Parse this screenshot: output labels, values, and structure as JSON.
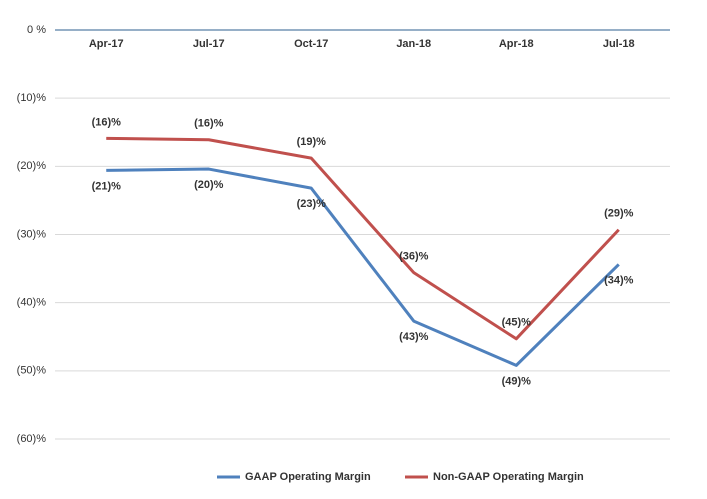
{
  "chart_data": {
    "type": "line",
    "categories": [
      "Apr-17",
      "Jul-17",
      "Oct-17",
      "Jan-18",
      "Apr-18",
      "Jul-18"
    ],
    "series": [
      {
        "name": "GAAP Operating Margin",
        "color": "#4f81bd",
        "values": [
          -20.6,
          -20.4,
          -23.2,
          -42.7,
          -49.2,
          -34.4
        ],
        "value_labels": [
          "(21)%",
          "(20)%",
          "(23)%",
          "(43)%",
          "(49)%",
          "(34)%"
        ]
      },
      {
        "name": "Non-GAAP Operating Margin",
        "color": "#c0504d",
        "values": [
          -15.9,
          -16.1,
          -18.8,
          -35.6,
          -45.3,
          -29.3
        ],
        "value_labels": [
          "(16)%",
          "(16)%",
          "(19)%",
          "(36)%",
          "(45)%",
          "(29)%"
        ]
      }
    ],
    "ylim": [
      -60,
      0
    ],
    "yticks": [
      {
        "value": 0,
        "label": "0 %"
      },
      {
        "value": -10,
        "label": "(10)%"
      },
      {
        "value": -20,
        "label": "(20)%"
      },
      {
        "value": -30,
        "label": "(30)%"
      },
      {
        "value": -40,
        "label": "(40)%"
      },
      {
        "value": -50,
        "label": "(50)%"
      },
      {
        "value": -60,
        "label": "(60)%"
      }
    ],
    "grid": true,
    "legend": "bottom"
  }
}
